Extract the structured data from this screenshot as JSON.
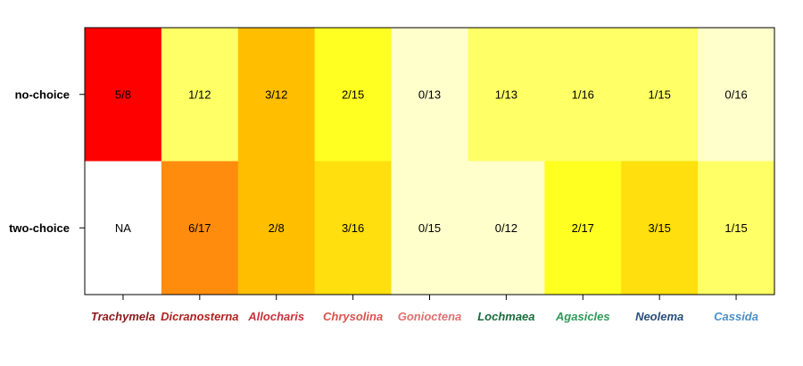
{
  "chart_data": {
    "type": "heatmap",
    "rows": [
      "no-choice",
      "two-choice"
    ],
    "columns": [
      {
        "name": "Trachymela",
        "color": "#8b1a1a"
      },
      {
        "name": "Dicranosterna",
        "color": "#b22222"
      },
      {
        "name": "Allocharis",
        "color": "#c8323c"
      },
      {
        "name": "Chrysolina",
        "color": "#d9534f"
      },
      {
        "name": "Gonioctena",
        "color": "#e07070"
      },
      {
        "name": "Lochmaea",
        "color": "#1a6b3c"
      },
      {
        "name": "Agasicles",
        "color": "#2e9a5a"
      },
      {
        "name": "Neolema",
        "color": "#2a4f7a"
      },
      {
        "name": "Cassida",
        "color": "#4a90c8"
      }
    ],
    "cells": [
      [
        {
          "label": "5/8",
          "color": "#ff0000"
        },
        {
          "label": "1/12",
          "color": "#ffff66"
        },
        {
          "label": "3/12",
          "color": "#ffbf00"
        },
        {
          "label": "2/15",
          "color": "#ffff22"
        },
        {
          "label": "0/13",
          "color": "#ffffcc"
        },
        {
          "label": "1/13",
          "color": "#ffff66"
        },
        {
          "label": "1/16",
          "color": "#ffff66"
        },
        {
          "label": "1/15",
          "color": "#ffff66"
        },
        {
          "label": "0/16",
          "color": "#ffffcc"
        }
      ],
      [
        {
          "label": "NA",
          "color": "#ffffff"
        },
        {
          "label": "6/17",
          "color": "#ff8c0d"
        },
        {
          "label": "2/8",
          "color": "#ffbf00"
        },
        {
          "label": "3/16",
          "color": "#ffdf0d"
        },
        {
          "label": "0/15",
          "color": "#ffffcc"
        },
        {
          "label": "0/12",
          "color": "#ffffcc"
        },
        {
          "label": "2/17",
          "color": "#ffff22"
        },
        {
          "label": "3/15",
          "color": "#ffdf0d"
        },
        {
          "label": "1/15",
          "color": "#ffff66"
        }
      ]
    ],
    "grid": false,
    "legend": "none"
  }
}
